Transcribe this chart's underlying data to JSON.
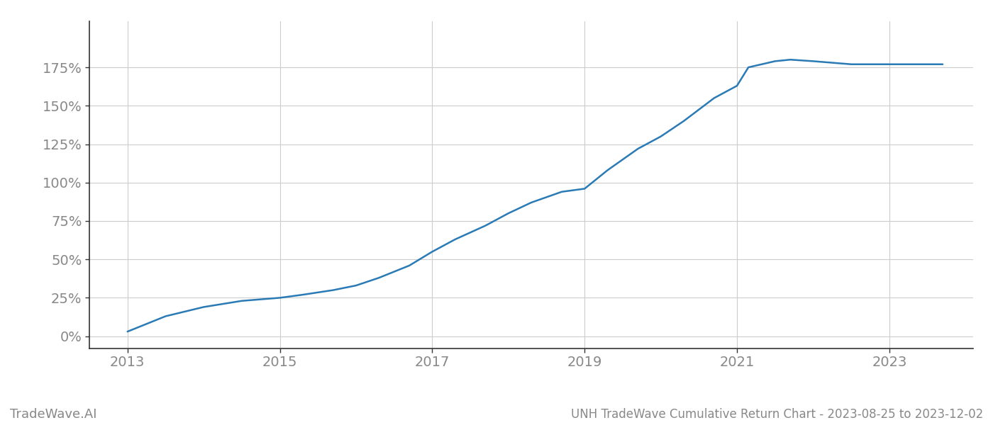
{
  "title": "UNH TradeWave Cumulative Return Chart - 2023-08-25 to 2023-12-02",
  "watermark": "TradeWave.AI",
  "line_color": "#2a7ab5",
  "line_width": 1.8,
  "background_color": "#ffffff",
  "grid_color": "#cccccc",
  "x_years": [
    2013.0,
    2013.5,
    2014.0,
    2014.5,
    2015.0,
    2015.3,
    2015.7,
    2016.0,
    2016.3,
    2016.7,
    2017.0,
    2017.3,
    2017.7,
    2018.0,
    2018.3,
    2018.7,
    2019.0,
    2019.3,
    2019.7,
    2020.0,
    2020.3,
    2020.7,
    2021.0,
    2021.15,
    2021.5,
    2021.7,
    2022.0,
    2022.5,
    2023.0,
    2023.7
  ],
  "y_values": [
    0.03,
    0.13,
    0.19,
    0.23,
    0.25,
    0.27,
    0.3,
    0.33,
    0.38,
    0.46,
    0.55,
    0.63,
    0.72,
    0.8,
    0.87,
    0.94,
    0.96,
    1.08,
    1.22,
    1.3,
    1.4,
    1.55,
    1.63,
    1.75,
    1.79,
    1.8,
    1.79,
    1.77,
    1.77,
    1.77
  ],
  "xlim": [
    2012.5,
    2024.1
  ],
  "ylim": [
    -0.08,
    2.05
  ],
  "yticks": [
    0.0,
    0.25,
    0.5,
    0.75,
    1.0,
    1.25,
    1.5,
    1.75
  ],
  "ytick_labels": [
    "0%",
    "25%",
    "50%",
    "75%",
    "100%",
    "125%",
    "150%",
    "175%"
  ],
  "xtick_years": [
    2013,
    2015,
    2017,
    2019,
    2021,
    2023
  ],
  "tick_color": "#888888",
  "spine_color": "#333333",
  "tick_fontsize": 14,
  "watermark_fontsize": 13,
  "title_fontsize": 12
}
